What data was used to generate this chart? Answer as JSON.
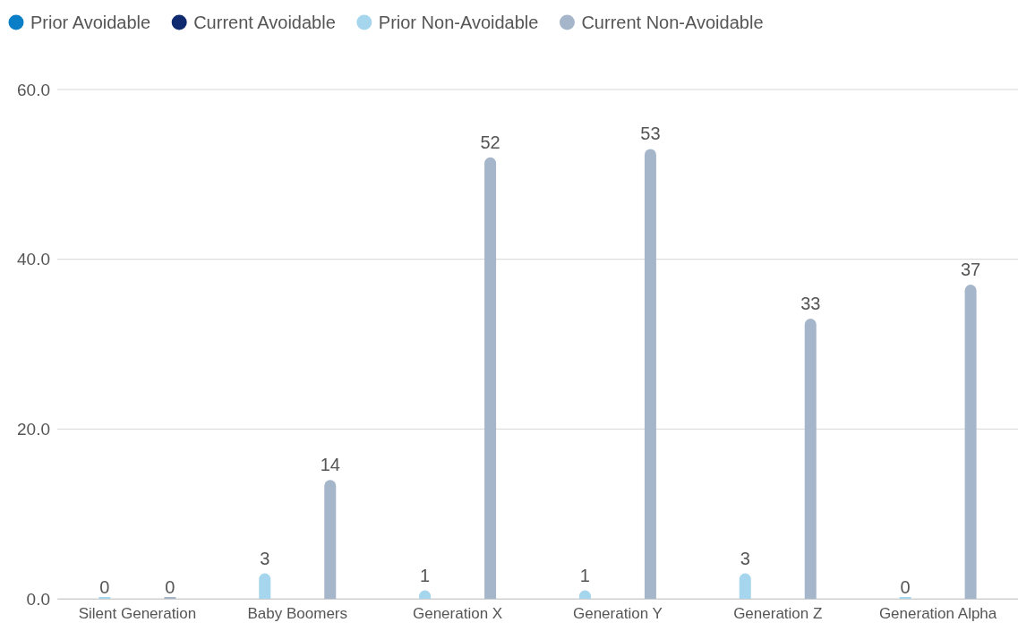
{
  "chart_data": {
    "type": "bar",
    "categories": [
      "Silent Generation",
      "Baby Boomers",
      "Generation X",
      "Generation Y",
      "Generation Z",
      "Generation Alpha"
    ],
    "series": [
      {
        "name": "Prior Avoidable",
        "color": "#0a7fc7",
        "values": [
          null,
          null,
          null,
          null,
          null,
          null
        ]
      },
      {
        "name": "Current Avoidable",
        "color": "#0f2a6e",
        "values": [
          null,
          null,
          null,
          null,
          null,
          null
        ]
      },
      {
        "name": "Prior Non-Avoidable",
        "color": "#a6d5ee",
        "values": [
          0,
          3,
          1,
          1,
          3,
          0
        ]
      },
      {
        "name": "Current Non-Avoidable",
        "color": "#a5b5ca",
        "values": [
          0,
          14,
          52,
          53,
          33,
          37
        ]
      }
    ],
    "ylim": [
      0,
      60
    ],
    "yticks": [
      {
        "value": 0,
        "label": "0.0"
      },
      {
        "value": 20,
        "label": "20.0"
      },
      {
        "value": 40,
        "label": "40.0"
      },
      {
        "value": 60,
        "label": "60.0"
      }
    ],
    "grid": "y",
    "legend": "top left",
    "data_labels": true
  }
}
